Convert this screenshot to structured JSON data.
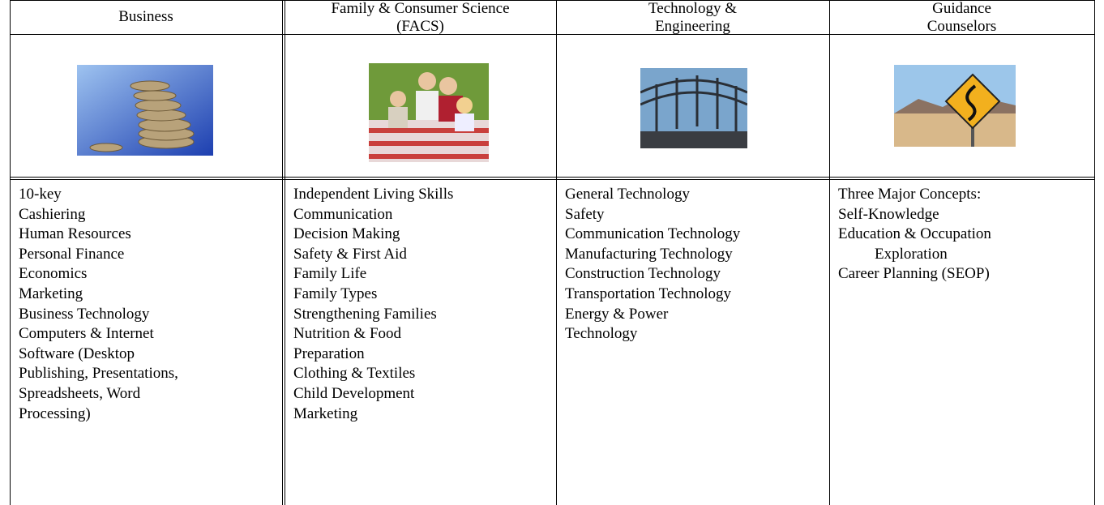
{
  "columns": [
    {
      "header": [
        "Business"
      ],
      "items": [
        "10-key",
        "Cashiering",
        "Human Resources",
        "Personal Finance",
        "Economics",
        "Marketing",
        "Business Technology",
        "Computers & Internet",
        "Software (Desktop",
        "Publishing, Presentations,",
        "Spreadsheets, Word",
        "Processing)"
      ]
    },
    {
      "header": [
        "Family & Consumer Science",
        "(FACS)"
      ],
      "items": [
        "Independent Living Skills",
        "Communication",
        "Decision Making",
        "Safety & First Aid",
        "Family Life",
        "Family Types",
        "Strengthening Families",
        "Nutrition & Food",
        "Preparation",
        "Clothing & Textiles",
        "Child Development",
        "Marketing"
      ]
    },
    {
      "header": [
        "Technology &",
        "Engineering"
      ],
      "items": [
        "General Technology",
        "Safety",
        "Communication Technology",
        "Manufacturing Technology",
        "Construction Technology",
        "Transportation Technology",
        "Energy & Power",
        "Technology"
      ]
    },
    {
      "header": [
        "Guidance",
        "Counselors"
      ],
      "items": [
        "Three Major Concepts:",
        "Self-Knowledge",
        "Education & Occupation",
        "Exploration",
        "Career Planning (SEOP)"
      ]
    }
  ]
}
